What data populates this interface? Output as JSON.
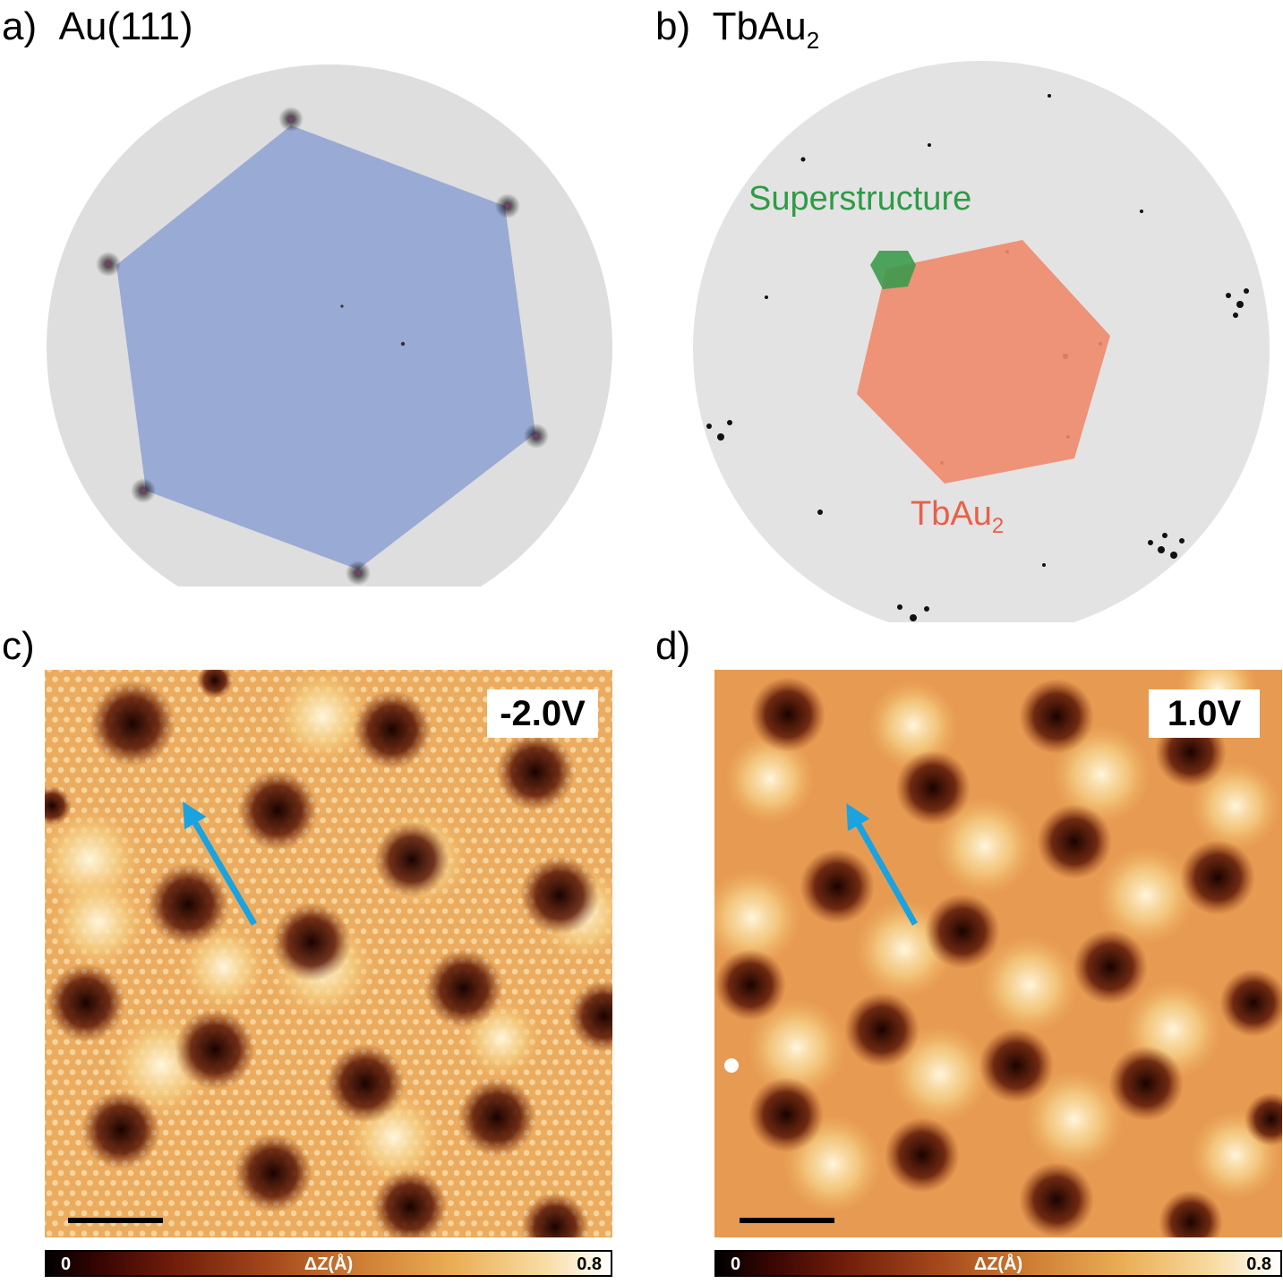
{
  "panels": {
    "a": {
      "letter": "a)",
      "title": "Au(111)"
    },
    "b": {
      "letter": "b)",
      "title_main": "TbAu",
      "title_sub": "2",
      "superstructure_label": "Superstructure",
      "tbau2_label_main": "TbAu",
      "tbau2_label_sub": "2"
    },
    "c": {
      "letter": "c)",
      "bias": "-2.0V"
    },
    "d": {
      "letter": "d)",
      "bias": "1.0V"
    }
  },
  "colorbar": {
    "min": "0",
    "label": "ΔZ(Å)",
    "max": "0.8"
  },
  "colors": {
    "au_hexagon": "#8fa3d4",
    "tbau2_hexagon": "#ee8a6c",
    "superstructure_hexagon": "#3c9a4d",
    "superstructure_text": "#2e9b45",
    "tbau2_text": "#e8604a",
    "arrow": "#1aa3e0",
    "leed_background": "#dcdcdc"
  }
}
